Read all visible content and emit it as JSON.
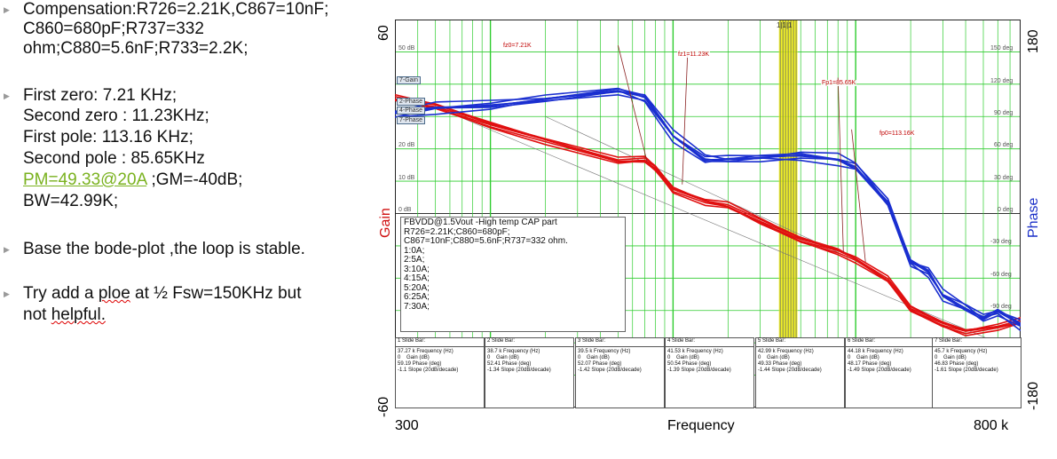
{
  "notes": {
    "compensation": [
      "Compensation:R726=2.21K,C867=10nF;",
      "C860=680pF;R737=332",
      "ohm;C880=5.6nF;R733=2.2K;"
    ],
    "zeros_poles": [
      "First zero:   7.21 KHz;",
      "Second zero : 11.23KHz;",
      "First pole: 113.16 KHz;",
      "Second pole : 85.65KHz"
    ],
    "pm": "PM=49.33@20A",
    "gm": " ;GM=-40dB;",
    "bw": "BW=42.99K;",
    "stability": "Base the bode-plot ,the loop is stable.",
    "try_line1_a": "Try add a ",
    "try_line1_b": "ploe",
    "try_line1_c": " at ½ Fsw=150KHz but",
    "try_line2_a": "not ",
    "try_line2_b": "helpful."
  },
  "chart_data": {
    "type": "line",
    "title": "FBVDD@1.5Vout -High temp CAP part",
    "xlabel": "Frequency",
    "ylabel_left": "Gain",
    "ylabel_right": "Phase",
    "x_scale": "log",
    "xlim": [
      300,
      800000
    ],
    "x_tick_labels": [
      "300",
      "800 k"
    ],
    "y_left_range": [
      -60,
      60
    ],
    "y_left_tick_labels": [
      "60",
      "-60"
    ],
    "y_right_range": [
      -180,
      180
    ],
    "y_right_tick_labels": [
      "180",
      "-180"
    ],
    "gain_grid_labels": [
      "50 dB",
      "20 dB",
      "10 dB",
      "0 dB"
    ],
    "phase_grid_labels": [
      "150 deg",
      "120 deg",
      "90 deg",
      "60 deg",
      "30 deg",
      "0 deg",
      "-30 deg",
      "-60 deg",
      "-90 deg"
    ],
    "top_label": "1|1|1",
    "annotations": [
      "fz0=7.21K",
      "fz1=11.23K",
      "Fp1=85.65K",
      "fp0=113.16K"
    ],
    "legend": [
      "7-Gain",
      "2-Phase",
      "4-Phase",
      "7-Phase"
    ],
    "info_box": [
      "FBVDD@1.5Vout -High temp CAP part",
      "R726=2.21K;C860=680pF;",
      "C867=10nF;C880=5.6nF;R737=332 ohm.",
      "1:0A;",
      "2:5A;",
      "3:10A;",
      "4:15A;",
      "5:20A;",
      "6:25A;",
      "7:30A;"
    ],
    "series": [
      {
        "name": "Gain (0A–30A)",
        "color": "#e01010",
        "x": [
          300,
          500,
          1000,
          2000,
          5000,
          7000,
          8000,
          10000,
          15000,
          20000,
          30000,
          50000,
          80000,
          100000,
          150000,
          200000,
          300000,
          400000,
          600000,
          800000
        ],
        "y_db": [
          35,
          33,
          28,
          23,
          16,
          16,
          14,
          8,
          4,
          2,
          -3,
          -8,
          -11,
          -14,
          -21,
          -30,
          -34,
          -36,
          -35,
          -34
        ]
      },
      {
        "name": "Phase (0A–30A)",
        "color": "#1a2fd0",
        "x": [
          300,
          500,
          1000,
          2000,
          5000,
          7000,
          10000,
          15000,
          20000,
          30000,
          50000,
          80000,
          100000,
          150000,
          200000,
          250000,
          300000,
          400000,
          500000,
          600000,
          800000
        ],
        "y_deg": [
          93,
          98,
          100,
          106,
          114,
          108,
          72,
          50,
          50,
          52,
          54,
          50,
          43,
          10,
          -45,
          -54,
          -76,
          -88,
          -97,
          -91,
          -103
        ]
      }
    ],
    "slide_bars": [
      {
        "title": "1  Slide Bar:",
        "freq": "37.27 k",
        "gain": "0",
        "phase": "59.19",
        "slope": "-1.1"
      },
      {
        "title": "2  Slide Bar:",
        "freq": "38.7 k",
        "gain": "0",
        "phase": "52.41",
        "slope": "-1.34"
      },
      {
        "title": "3  Slide Bar:",
        "freq": "39.5 k",
        "gain": "0",
        "phase": "52.07",
        "slope": "-1.42"
      },
      {
        "title": "4  Slide Bar:",
        "freq": "41.53 k",
        "gain": "0",
        "phase": "50.54",
        "slope": "-1.39"
      },
      {
        "title": "5  Slide Bar:",
        "freq": "42.99 k",
        "gain": "0",
        "phase": "49.33",
        "slope": "-1.44"
      },
      {
        "title": "6  Slide Bar:",
        "freq": "44.18 k",
        "gain": "0",
        "phase": "48.17",
        "slope": "-1.49"
      },
      {
        "title": "7  Slide Bar:",
        "freq": "45.7 k",
        "gain": "0",
        "phase": "46.83",
        "slope": "-1.61"
      }
    ],
    "slide_labels": {
      "freq": "Frequency (Hz)",
      "gain": "Gain (dB)",
      "phase": "Phase (deg)",
      "slope": "Slope (20dB/decade)"
    }
  }
}
